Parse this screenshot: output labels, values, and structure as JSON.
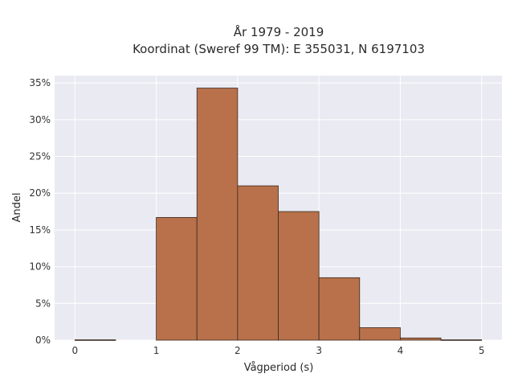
{
  "chart_data": {
    "type": "bar",
    "title_line1": "År 1979 - 2019",
    "title_line2": "Koordinat (Sweref 99 TM): E 355031, N 6197103",
    "xlabel": "Vågperiod (s)",
    "ylabel": "Andel",
    "bins": [
      {
        "x0": 0.0,
        "x1": 0.5,
        "value": 0.0005
      },
      {
        "x0": 0.5,
        "x1": 1.0,
        "value": 0.0
      },
      {
        "x0": 1.0,
        "x1": 1.5,
        "value": 0.167
      },
      {
        "x0": 1.5,
        "x1": 2.0,
        "value": 0.343
      },
      {
        "x0": 2.0,
        "x1": 2.5,
        "value": 0.21
      },
      {
        "x0": 2.5,
        "x1": 3.0,
        "value": 0.175
      },
      {
        "x0": 3.0,
        "x1": 3.5,
        "value": 0.085
      },
      {
        "x0": 3.5,
        "x1": 4.0,
        "value": 0.017
      },
      {
        "x0": 4.0,
        "x1": 4.5,
        "value": 0.003
      },
      {
        "x0": 4.5,
        "x1": 5.0,
        "value": 0.0005
      }
    ],
    "xlim": [
      -0.25,
      5.25
    ],
    "ylim": [
      0,
      0.36
    ],
    "xticks": [
      0,
      1,
      2,
      3,
      4,
      5
    ],
    "xtick_labels": [
      "0",
      "1",
      "2",
      "3",
      "4",
      "5"
    ],
    "yticks": [
      0,
      0.05,
      0.1,
      0.15,
      0.2,
      0.25,
      0.3,
      0.35
    ],
    "ytick_labels": [
      "0%",
      "5%",
      "10%",
      "15%",
      "20%",
      "25%",
      "30%",
      "35%"
    ],
    "grid": true,
    "colors": {
      "bar_fill": "#b8714a",
      "bar_edge": "#3a2a20",
      "plot_bg": "#eaeaf2",
      "grid": "#ffffff"
    }
  }
}
